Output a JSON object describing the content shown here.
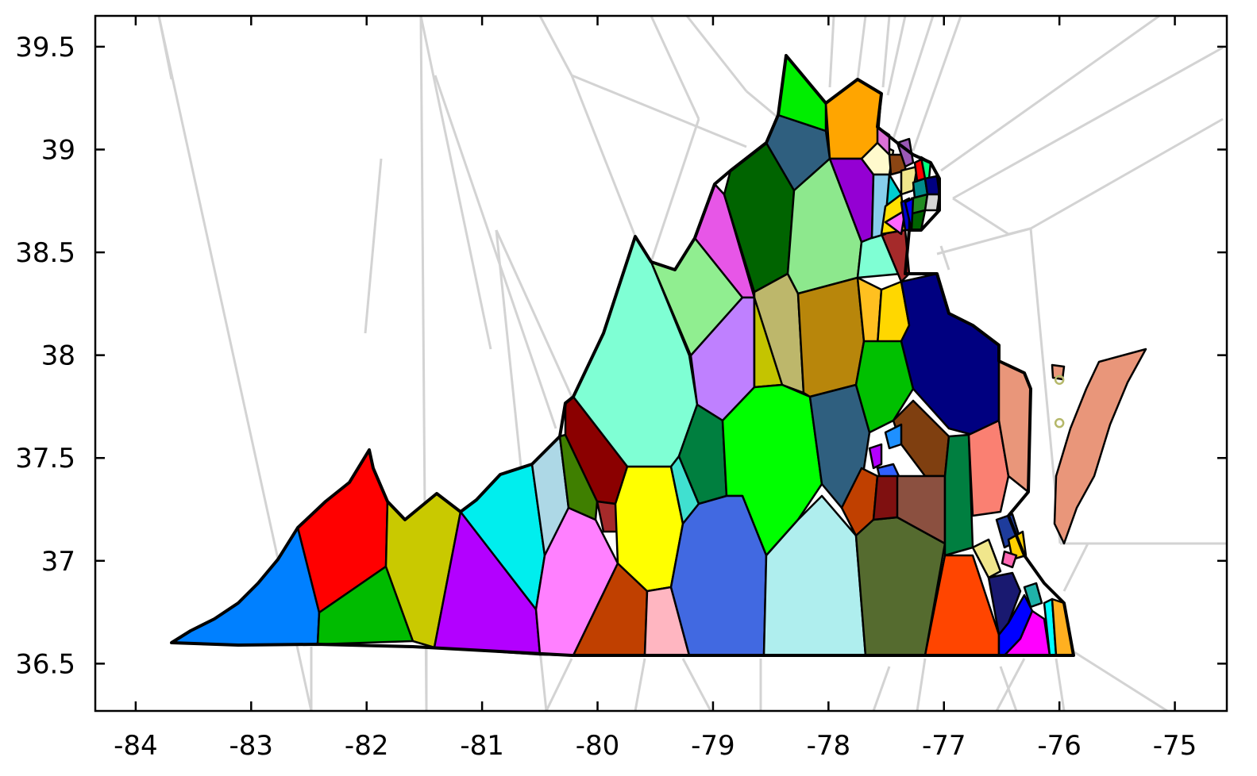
{
  "chart_data": {
    "type": "voronoi-map",
    "xlim": [
      -84.35,
      -74.55
    ],
    "ylim": [
      36.27,
      39.65
    ],
    "x_ticks": [
      "-84",
      "-83",
      "-82",
      "-81",
      "-80",
      "-79",
      "-78",
      "-77",
      "-76",
      "-75"
    ],
    "y_ticks": [
      "39.5",
      "39",
      "38.5",
      "38",
      "37.5",
      "37",
      "36.5"
    ],
    "grid": false,
    "legend": "none",
    "colors": {
      "voronoi_edges": "#d3d3d3",
      "boundary": "#000000",
      "eastern_shore": "#e9967a",
      "marker": "#b5b86a"
    },
    "markers": [
      {
        "lon": -76.0,
        "lat": 37.88
      },
      {
        "lon": -76.0,
        "lat": 37.67
      }
    ]
  }
}
